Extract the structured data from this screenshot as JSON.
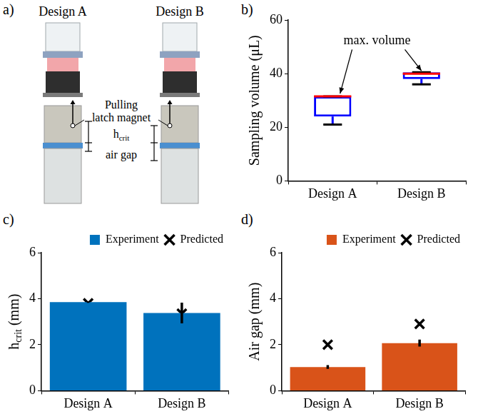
{
  "panel_a": {
    "panel": "a)",
    "designs": [
      "Design A",
      "Design B"
    ],
    "pull_label": "Pulling latch magnet",
    "h_label": {
      "text": "h",
      "subscript": "crit"
    },
    "air_gap_label": "air gap"
  },
  "chart_data": [
    {
      "panel": "b)",
      "type": "box",
      "ylabel": {
        "text": "Sampling volume (μL)"
      },
      "categories": [
        "Design A",
        "Design B"
      ],
      "boxes": [
        {
          "min": 21,
          "q1": 24,
          "median": 31.5,
          "q3": 31.5,
          "max": 31.5
        },
        {
          "min": 36,
          "q1": 38,
          "median": 40,
          "q3": 40.5,
          "max": 40.5
        }
      ],
      "color": "#0000ff",
      "annotation": "max. volume",
      "ylim": [
        0,
        60
      ],
      "yticks": [
        0,
        20,
        40,
        60
      ],
      "grid": false
    },
    {
      "panel": "c)",
      "type": "bar",
      "ylabel": {
        "text": "h",
        "subscript": "crit",
        "suffix": " (mm)"
      },
      "categories": [
        "Design A",
        "Design B"
      ],
      "series": [
        {
          "name": "Experiment",
          "type": "bar",
          "color": "#0072bd",
          "values": [
            3.85,
            3.38
          ],
          "errors": [
            0.03,
            0.45
          ]
        },
        {
          "name": "Predicted",
          "type": "scatter",
          "marker": "x",
          "color": "#000000",
          "values": [
            3.8,
            3.35
          ]
        }
      ],
      "ylim": [
        0,
        6
      ],
      "yticks": [
        0,
        2,
        4,
        6
      ],
      "grid": false,
      "legend": "top right"
    },
    {
      "panel": "d)",
      "type": "bar",
      "ylabel": {
        "text": "Air gap (mm)"
      },
      "categories": [
        "Design A",
        "Design B"
      ],
      "series": [
        {
          "name": "Experiment",
          "type": "bar",
          "color": "#d95319",
          "values": [
            1.03,
            2.07
          ],
          "errors": [
            0.08,
            0.15
          ]
        },
        {
          "name": "Predicted",
          "type": "scatter",
          "marker": "x",
          "color": "#000000",
          "values": [
            2.0,
            2.9
          ]
        }
      ],
      "ylim": [
        0,
        6
      ],
      "yticks": [
        0,
        2,
        4,
        6
      ],
      "grid": false,
      "legend": "top right"
    }
  ]
}
